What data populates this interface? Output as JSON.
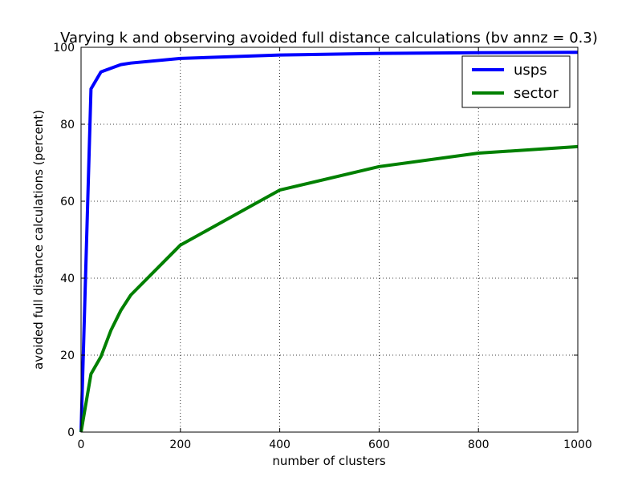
{
  "chart_data": {
    "type": "line",
    "title": "Varying k and observing avoided full distance calculations (bv annz = 0.3)",
    "xlabel": "number of clusters",
    "ylabel": "avoided full distance calculations (percent)",
    "xlim": [
      0,
      1000
    ],
    "ylim": [
      0,
      100
    ],
    "xticks": [
      0,
      200,
      400,
      600,
      800,
      1000
    ],
    "yticks": [
      0,
      20,
      40,
      60,
      80,
      100
    ],
    "xtick_labels": [
      "0",
      "200",
      "400",
      "600",
      "800",
      "1000"
    ],
    "ytick_labels": [
      "0",
      "20",
      "40",
      "60",
      "80",
      "100"
    ],
    "grid": true,
    "legend_position": "top-right",
    "series": [
      {
        "name": "usps",
        "color": "#0000ff",
        "x": [
          0,
          20,
          40,
          80,
          100,
          200,
          400,
          600,
          800,
          1000
        ],
        "y": [
          0,
          89.2,
          93.6,
          95.5,
          95.9,
          97.1,
          98.0,
          98.4,
          98.6,
          98.7
        ]
      },
      {
        "name": "sector",
        "color": "#008000",
        "x": [
          0,
          20,
          40,
          60,
          80,
          100,
          200,
          400,
          600,
          800,
          1000
        ],
        "y": [
          0,
          15.1,
          19.6,
          26.4,
          31.6,
          35.6,
          48.6,
          62.9,
          69.0,
          72.5,
          74.2
        ]
      }
    ]
  }
}
